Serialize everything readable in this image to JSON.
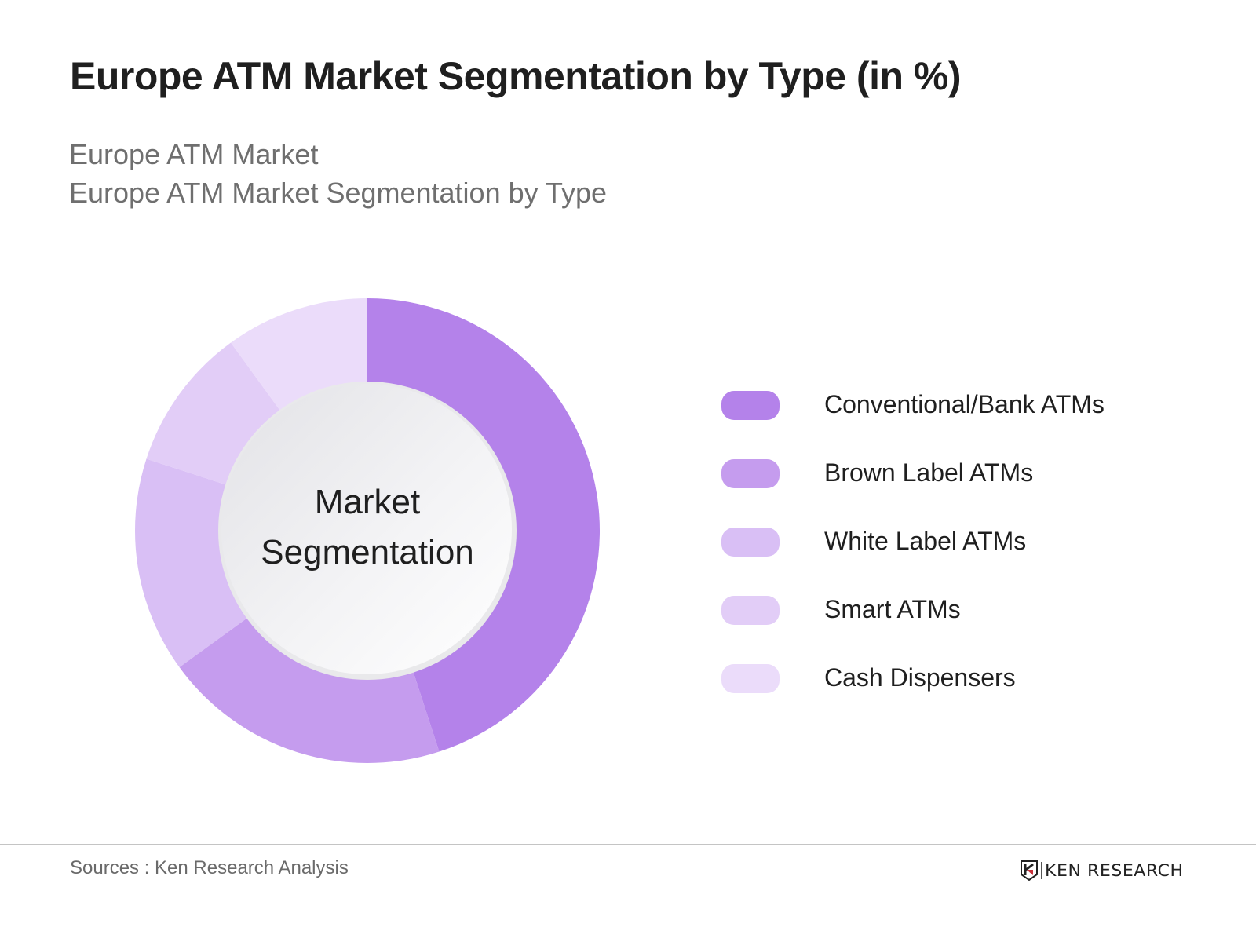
{
  "header": {
    "title": "Europe ATM Market Segmentation by Type (in %)",
    "subtitle_line1": "Europe ATM Market",
    "subtitle_line2": "Europe ATM Market Segmentation by Type"
  },
  "center_label": {
    "line1": "Market",
    "line2": "Segmentation"
  },
  "legend": {
    "items": [
      {
        "label": "Conventional/Bank ATMs",
        "color": "#b482ea"
      },
      {
        "label": "Brown Label ATMs",
        "color": "#c59cee"
      },
      {
        "label": "White Label ATMs",
        "color": "#d9bff5"
      },
      {
        "label": "Smart ATMs",
        "color": "#e2cdf7"
      },
      {
        "label": "Cash Dispensers",
        "color": "#ebdcfa"
      }
    ]
  },
  "footer": {
    "sources": "Sources : Ken Research Analysis",
    "logo_text": "KEN RESEARCH"
  },
  "chart_data": {
    "type": "pie",
    "variant": "donut",
    "title": "Europe ATM Market Segmentation by Type (in %)",
    "subtitle": [
      "Europe ATM Market",
      "Europe ATM Market Segmentation by Type"
    ],
    "center_text": "Market Segmentation",
    "categories": [
      "Conventional/Bank ATMs",
      "Brown Label ATMs",
      "White Label ATMs",
      "Smart ATMs",
      "Cash Dispensers"
    ],
    "values": [
      45,
      20,
      15,
      10,
      10
    ],
    "unit": "%",
    "colors": [
      "#b482ea",
      "#c59cee",
      "#d9bff5",
      "#e2cdf7",
      "#ebdcfa"
    ],
    "start_angle": "12 o'clock",
    "direction": "clockwise",
    "data_labels": false,
    "legend_position": "right",
    "source": "Sources : Ken Research Analysis"
  }
}
